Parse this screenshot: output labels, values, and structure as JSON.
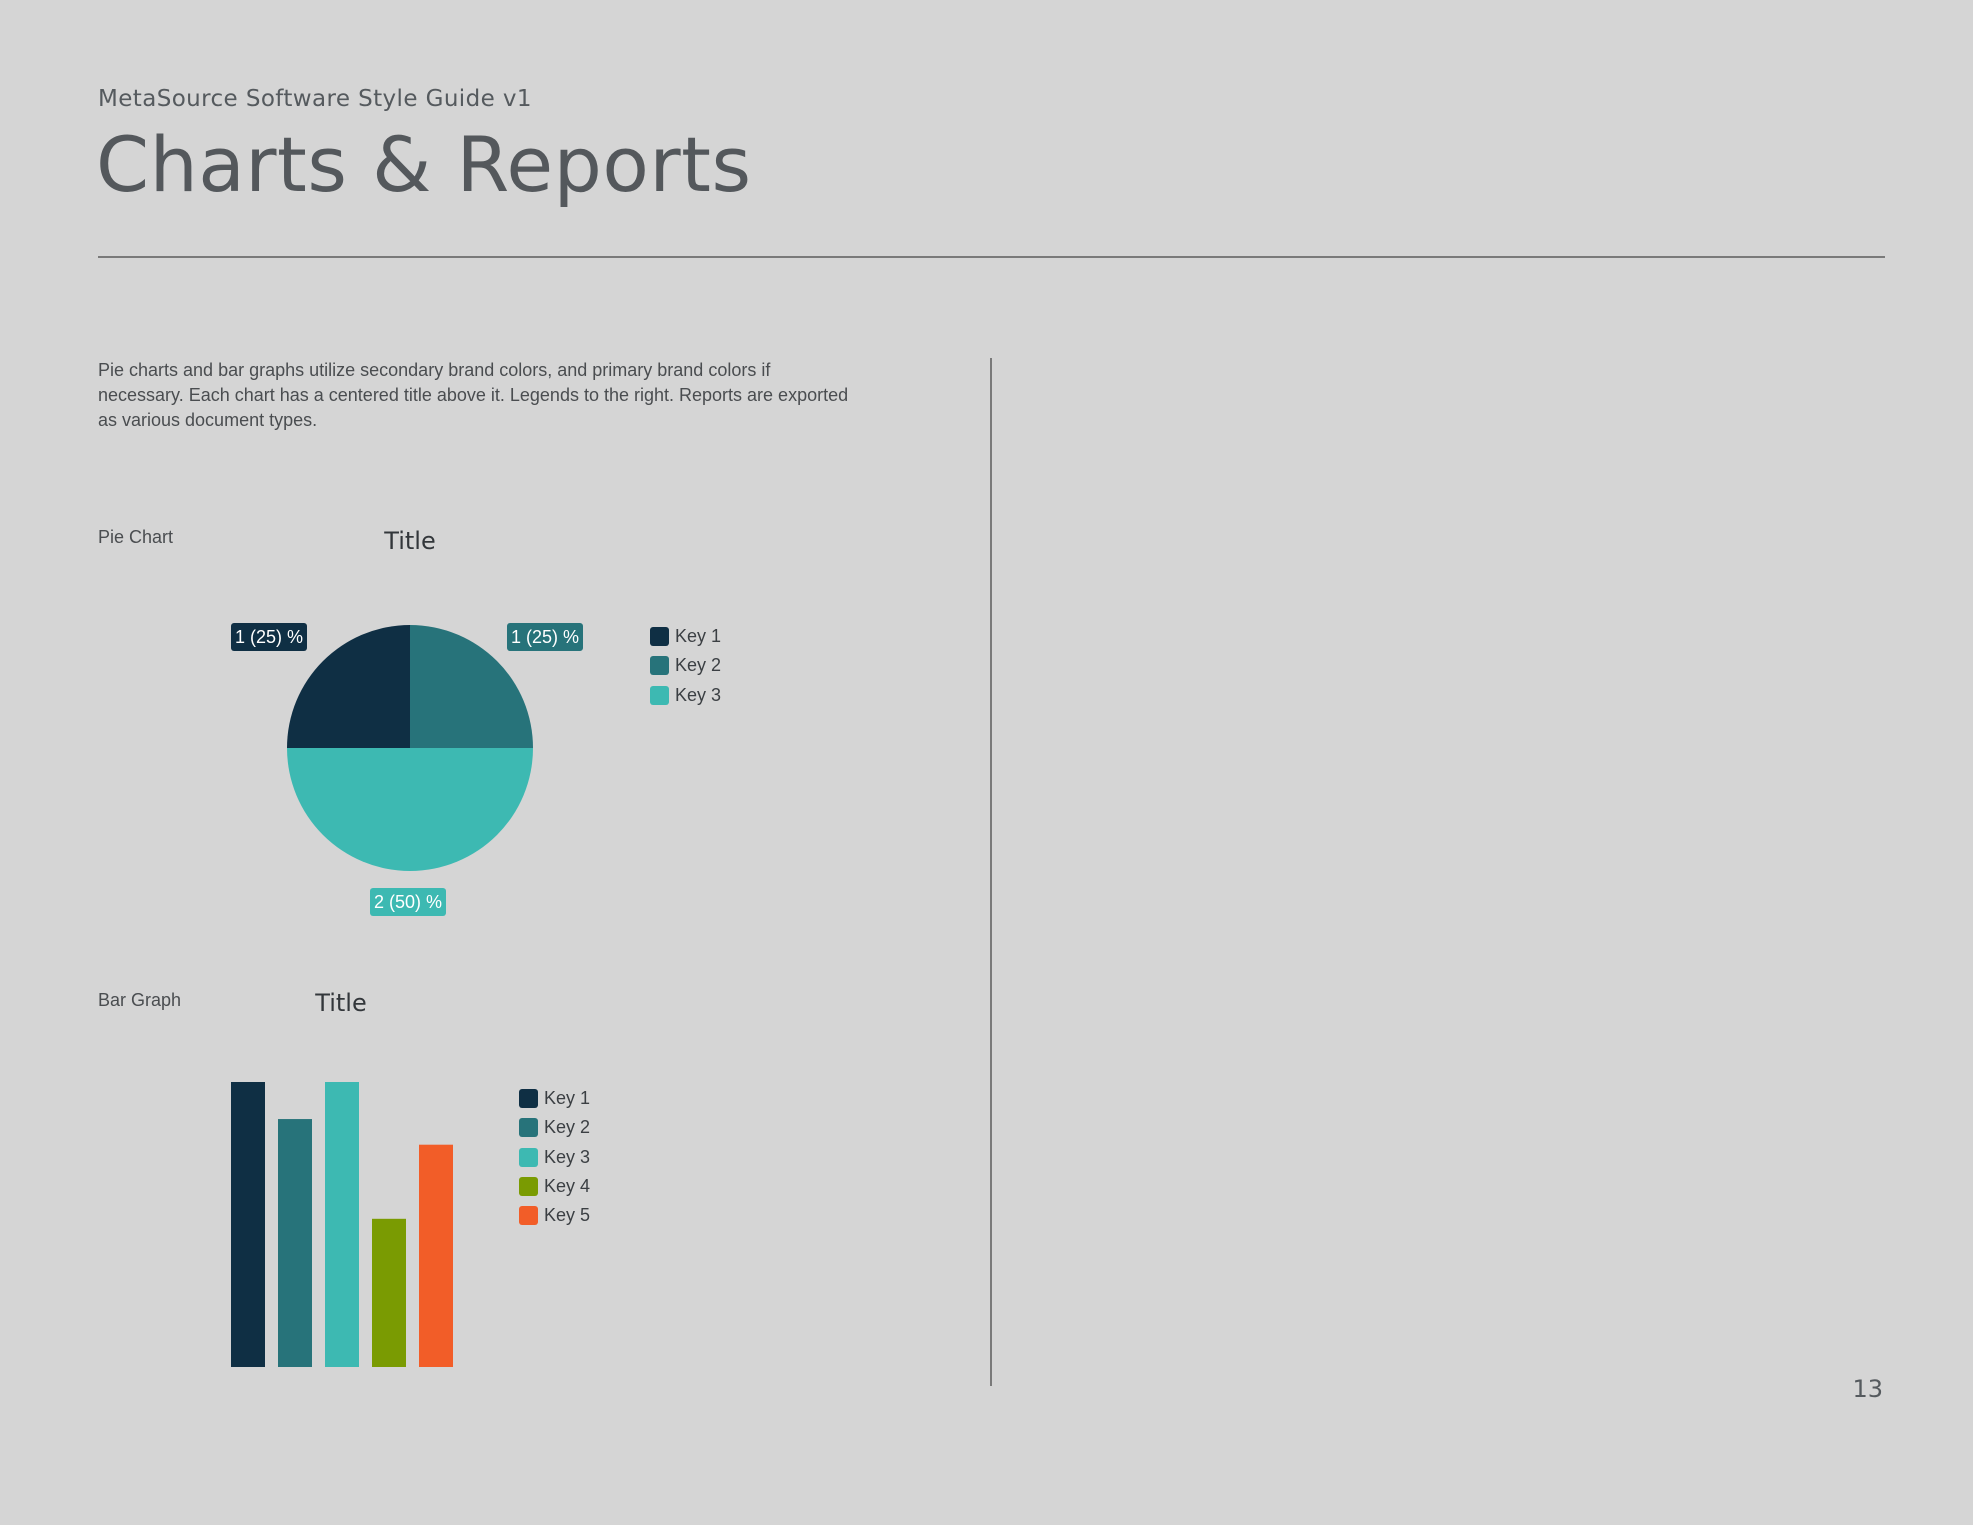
{
  "header": {
    "eyebrow": "MetaSource Software Style Guide v1",
    "title": "Charts & Reports"
  },
  "intro_text": "Pie charts and bar graphs utilize secondary brand colors, and primary brand colors if necessary. Each chart has a centered title above it. Legends to the right. Reports are exported as various document types.",
  "colors": {
    "key1": "#0f2f44",
    "key2": "#27737a",
    "key3": "#3db9b2",
    "key4": "#7a9b02",
    "key5": "#f25d28"
  },
  "pie_section": {
    "label": "Pie Chart"
  },
  "bar_section": {
    "label": "Bar Graph"
  },
  "chart_data": [
    {
      "type": "pie",
      "title": "Title",
      "legend_position": "right",
      "slices": [
        {
          "label": "Key 1",
          "value": 1,
          "percent": 25,
          "data_label": "1 (25) %",
          "color": "#0f2f44"
        },
        {
          "label": "Key 2",
          "value": 1,
          "percent": 25,
          "data_label": "1 (25) %",
          "color": "#27737a"
        },
        {
          "label": "Key 3",
          "value": 2,
          "percent": 50,
          "data_label": "2 (50) %",
          "color": "#3db9b2"
        }
      ]
    },
    {
      "type": "bar",
      "title": "Title",
      "legend_position": "right",
      "grid": false,
      "ylim": [
        0,
        100
      ],
      "categories": [
        "Key 1",
        "Key 2",
        "Key 3",
        "Key 4",
        "Key 5"
      ],
      "values": [
        100,
        87,
        100,
        52,
        78
      ],
      "colors": [
        "#0f2f44",
        "#27737a",
        "#3db9b2",
        "#7a9b02",
        "#f25d28"
      ]
    }
  ],
  "page_number": "13"
}
